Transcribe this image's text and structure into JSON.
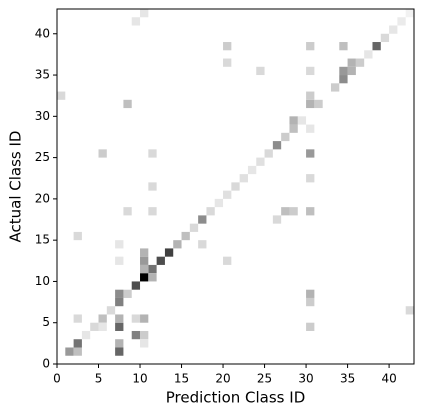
{
  "chart_data": {
    "type": "heatmap",
    "x_label": "Prediction Class ID",
    "y_label": "Actual Class ID",
    "xlim": [
      0,
      43
    ],
    "ylim": [
      0,
      43
    ],
    "xticks": [
      0,
      5,
      10,
      15,
      20,
      25,
      30,
      35,
      40
    ],
    "yticks": [
      0,
      5,
      10,
      15,
      20,
      25,
      30,
      35,
      40
    ],
    "colormap": "Greys",
    "cells": [
      [
        1,
        1,
        0.4
      ],
      [
        2,
        1,
        0.25
      ],
      [
        2,
        2,
        0.55
      ],
      [
        3,
        3,
        0.1
      ],
      [
        4,
        4,
        0.15
      ],
      [
        5,
        5,
        0.25
      ],
      [
        6,
        6,
        0.15
      ],
      [
        7,
        7,
        0.5
      ],
      [
        8,
        8,
        0.2
      ],
      [
        9,
        9,
        0.7
      ],
      [
        10,
        10,
        1.0
      ],
      [
        11,
        11,
        0.55
      ],
      [
        12,
        12,
        0.7
      ],
      [
        13,
        13,
        0.75
      ],
      [
        14,
        14,
        0.3
      ],
      [
        15,
        15,
        0.25
      ],
      [
        16,
        16,
        0.15
      ],
      [
        17,
        17,
        0.45
      ],
      [
        18,
        18,
        0.15
      ],
      [
        19,
        19,
        0.1
      ],
      [
        20,
        20,
        0.12
      ],
      [
        21,
        21,
        0.15
      ],
      [
        22,
        22,
        0.12
      ],
      [
        23,
        23,
        0.1
      ],
      [
        24,
        24,
        0.12
      ],
      [
        25,
        25,
        0.15
      ],
      [
        26,
        26,
        0.45
      ],
      [
        27,
        27,
        0.2
      ],
      [
        28,
        28,
        0.25
      ],
      [
        29,
        29,
        0.1
      ],
      [
        30,
        31,
        0.3
      ],
      [
        31,
        31,
        0.2
      ],
      [
        33,
        33,
        0.2
      ],
      [
        34,
        34,
        0.45
      ],
      [
        35,
        35,
        0.3
      ],
      [
        35,
        36,
        0.3
      ],
      [
        36,
        36,
        0.2
      ],
      [
        37,
        37,
        0.1
      ],
      [
        38,
        38,
        0.6
      ],
      [
        39,
        39,
        0.15
      ],
      [
        40,
        40,
        0.1
      ],
      [
        41,
        41,
        0.08
      ],
      [
        42,
        42,
        0.05
      ],
      [
        7,
        1,
        0.6
      ],
      [
        7,
        2,
        0.3
      ],
      [
        7,
        4,
        0.6
      ],
      [
        7,
        5,
        0.3
      ],
      [
        7,
        8,
        0.45
      ],
      [
        7,
        12,
        0.1
      ],
      [
        7,
        14,
        0.1
      ],
      [
        9,
        3,
        0.5
      ],
      [
        10,
        3,
        0.2
      ],
      [
        10,
        5,
        0.3
      ],
      [
        9,
        5,
        0.15
      ],
      [
        10,
        2,
        0.1
      ],
      [
        10,
        12,
        0.4
      ],
      [
        10,
        13,
        0.3
      ],
      [
        10,
        11,
        0.3
      ],
      [
        11,
        10,
        0.3
      ],
      [
        2,
        5,
        0.15
      ],
      [
        5,
        4,
        0.1
      ],
      [
        30,
        4,
        0.2
      ],
      [
        30,
        8,
        0.3
      ],
      [
        30,
        7,
        0.2
      ],
      [
        30,
        18,
        0.25
      ],
      [
        30,
        25,
        0.4
      ],
      [
        30,
        32,
        0.2
      ],
      [
        30,
        35,
        0.15
      ],
      [
        30,
        38,
        0.2
      ],
      [
        30,
        22,
        0.15
      ],
      [
        30,
        28,
        0.1
      ],
      [
        28,
        29,
        0.3
      ],
      [
        27,
        18,
        0.25
      ],
      [
        26,
        17,
        0.15
      ],
      [
        28,
        18,
        0.2
      ],
      [
        20,
        38,
        0.2
      ],
      [
        20,
        36,
        0.15
      ],
      [
        24,
        35,
        0.15
      ],
      [
        34,
        38,
        0.25
      ],
      [
        34,
        35,
        0.4
      ],
      [
        17,
        14,
        0.15
      ],
      [
        5,
        25,
        0.2
      ],
      [
        8,
        31,
        0.25
      ],
      [
        11,
        25,
        0.15
      ],
      [
        11,
        21,
        0.15
      ],
      [
        11,
        18,
        0.15
      ],
      [
        9,
        41,
        0.1
      ],
      [
        10,
        42,
        0.1
      ],
      [
        0,
        32,
        0.15
      ],
      [
        2,
        15,
        0.15
      ],
      [
        8,
        18,
        0.15
      ],
      [
        20,
        12,
        0.15
      ],
      [
        42,
        6,
        0.15
      ]
    ]
  }
}
